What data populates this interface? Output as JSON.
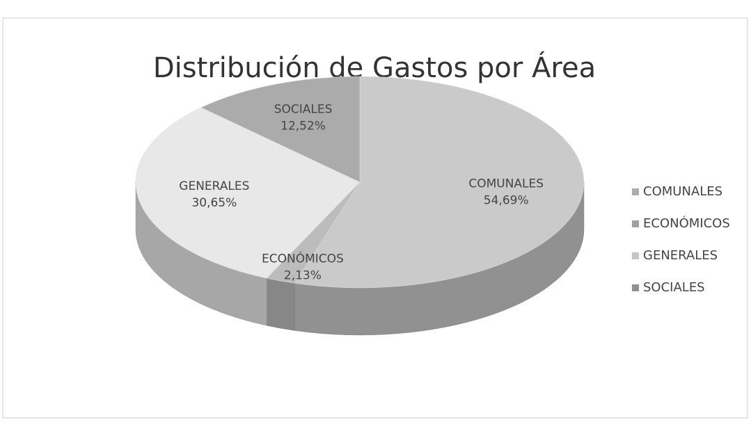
{
  "chart_data": {
    "type": "pie",
    "title": "Distribución de Gastos por Área",
    "categories": [
      "COMUNALES",
      "ECONÓMICOS",
      "GENERALES",
      "SOCIALES"
    ],
    "values": [
      54.69,
      2.13,
      30.65,
      12.52
    ],
    "value_labels": [
      "54,69%",
      "2,13%",
      "30,65%",
      "12,52%"
    ],
    "colors": [
      "#cacaca",
      "#bcbcbc",
      "#e8e8e8",
      "#ababab"
    ],
    "legend": "right"
  }
}
